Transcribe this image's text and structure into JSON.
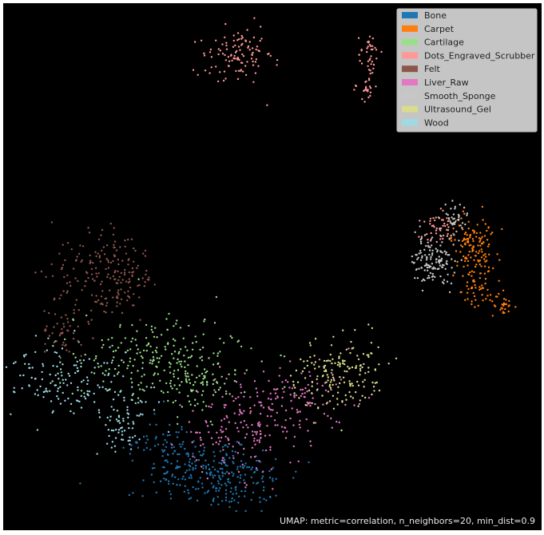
{
  "chart_data": {
    "type": "scatter",
    "caption": "UMAP: metric=correlation, n_neighbors=20, min_dist=0.9",
    "legend_position": "top-right",
    "background": "#000000",
    "axes_visible": false,
    "grid": false,
    "series": [
      {
        "name": "Bone",
        "color": "#1f77b4",
        "clusters": [
          {
            "cx": 270,
            "cy": 595,
            "sx": 42,
            "sy": 22,
            "n": 260
          },
          {
            "cx": 210,
            "cy": 560,
            "sx": 22,
            "sy": 18,
            "n": 60
          }
        ]
      },
      {
        "name": "Carpet",
        "color": "#ff7f0e",
        "clusters": [
          {
            "cx": 592,
            "cy": 305,
            "sx": 13,
            "sy": 16,
            "n": 120
          },
          {
            "cx": 600,
            "cy": 355,
            "sx": 14,
            "sy": 14,
            "n": 60
          },
          {
            "cx": 630,
            "cy": 383,
            "sx": 8,
            "sy": 7,
            "n": 25
          }
        ]
      },
      {
        "name": "Cartilage",
        "color": "#98df8a",
        "clusters": [
          {
            "cx": 200,
            "cy": 450,
            "sx": 52,
            "sy": 26,
            "n": 230
          },
          {
            "cx": 245,
            "cy": 478,
            "sx": 22,
            "sy": 22,
            "n": 60
          }
        ]
      },
      {
        "name": "Dots_Engraved_Scrubber",
        "color": "#ff9896",
        "clusters": [
          {
            "cx": 298,
            "cy": 70,
            "sx": 22,
            "sy": 18,
            "n": 110
          },
          {
            "cx": 462,
            "cy": 68,
            "sx": 7,
            "sy": 13,
            "n": 35
          },
          {
            "cx": 459,
            "cy": 110,
            "sx": 5,
            "sy": 10,
            "n": 25
          },
          {
            "cx": 548,
            "cy": 283,
            "sx": 10,
            "sy": 12,
            "n": 45
          }
        ]
      },
      {
        "name": "Felt",
        "color": "#8c564b",
        "clusters": [
          {
            "cx": 130,
            "cy": 345,
            "sx": 32,
            "sy": 28,
            "n": 170
          },
          {
            "cx": 78,
            "cy": 415,
            "sx": 12,
            "sy": 20,
            "n": 50
          },
          {
            "cx": 170,
            "cy": 350,
            "sx": 14,
            "sy": 14,
            "n": 30
          }
        ]
      },
      {
        "name": "Liver_Raw",
        "color": "#e377c2",
        "clusters": [
          {
            "cx": 300,
            "cy": 540,
            "sx": 38,
            "sy": 28,
            "n": 160
          },
          {
            "cx": 370,
            "cy": 500,
            "sx": 32,
            "sy": 22,
            "n": 110
          }
        ]
      },
      {
        "name": "Smooth_Sponge",
        "color": "#c7c7c7",
        "clusters": [
          {
            "cx": 542,
            "cy": 326,
            "sx": 14,
            "sy": 16,
            "n": 130
          },
          {
            "cx": 570,
            "cy": 275,
            "sx": 7,
            "sy": 11,
            "n": 40
          }
        ]
      },
      {
        "name": "Ultrasound_Gel",
        "color": "#dbdb8d",
        "clusters": [
          {
            "cx": 425,
            "cy": 470,
            "sx": 28,
            "sy": 24,
            "n": 170
          }
        ]
      },
      {
        "name": "Wood",
        "color": "#9edae5",
        "clusters": [
          {
            "cx": 90,
            "cy": 478,
            "sx": 38,
            "sy": 22,
            "n": 150
          },
          {
            "cx": 150,
            "cy": 528,
            "sx": 22,
            "sy": 22,
            "n": 70
          }
        ]
      }
    ]
  }
}
